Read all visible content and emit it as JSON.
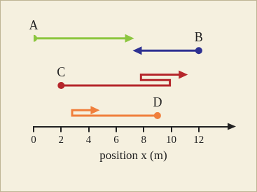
{
  "chart_data": {
    "type": "line",
    "x_label": "position x (m)",
    "xlim": [
      0,
      14.5
    ],
    "xticks": [
      0,
      2,
      4,
      6,
      8,
      10,
      12
    ],
    "tick_labels": "x",
    "grid": false,
    "marker": "circle",
    "series": [
      {
        "name": "A",
        "color": "#8cc63f",
        "x": [
          0,
          7
        ]
      },
      {
        "name": "B",
        "color": "#2e3192",
        "x": [
          12,
          7.5
        ]
      },
      {
        "name": "C",
        "color": "#b5262b",
        "x": [
          2,
          9.9,
          7.8,
          10.9
        ]
      },
      {
        "name": "D",
        "color": "#f07f3c",
        "x": [
          9,
          2.8,
          4.5
        ]
      }
    ]
  }
}
